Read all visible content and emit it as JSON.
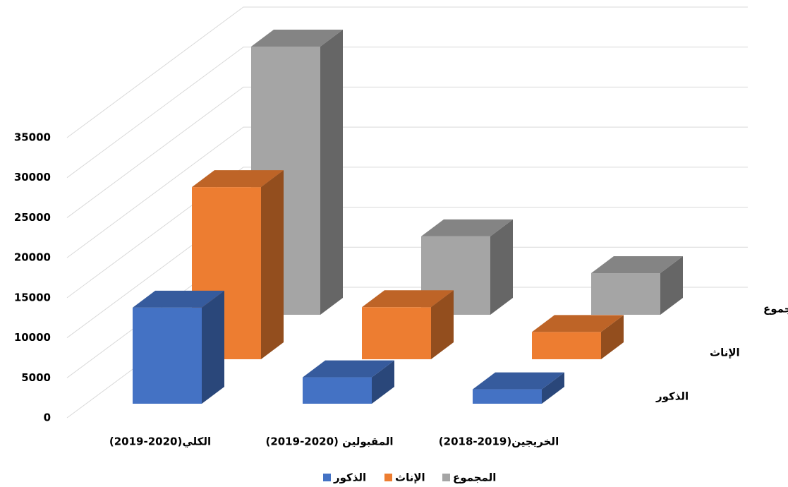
{
  "chart_data": {
    "type": "bar3d",
    "categories": [
      "الكلي(2020-2019)",
      "المقبولين (2020-2019)",
      "الخريجين(2019-2018)"
    ],
    "series": [
      {
        "name": "الذكور",
        "color": "#4472c4",
        "values": [
          12000,
          3300,
          1800
        ]
      },
      {
        "name": "الإناث",
        "color": "#ed7d31",
        "values": [
          21500,
          6500,
          3400
        ]
      },
      {
        "name": "المجموع",
        "color": "#a5a5a5",
        "values": [
          33500,
          9800,
          5200
        ]
      }
    ],
    "ylim": [
      0,
      35000
    ],
    "yticks": [
      0,
      5000,
      10000,
      15000,
      20000,
      25000,
      30000,
      35000
    ],
    "grid": true,
    "legend": "bottom"
  }
}
